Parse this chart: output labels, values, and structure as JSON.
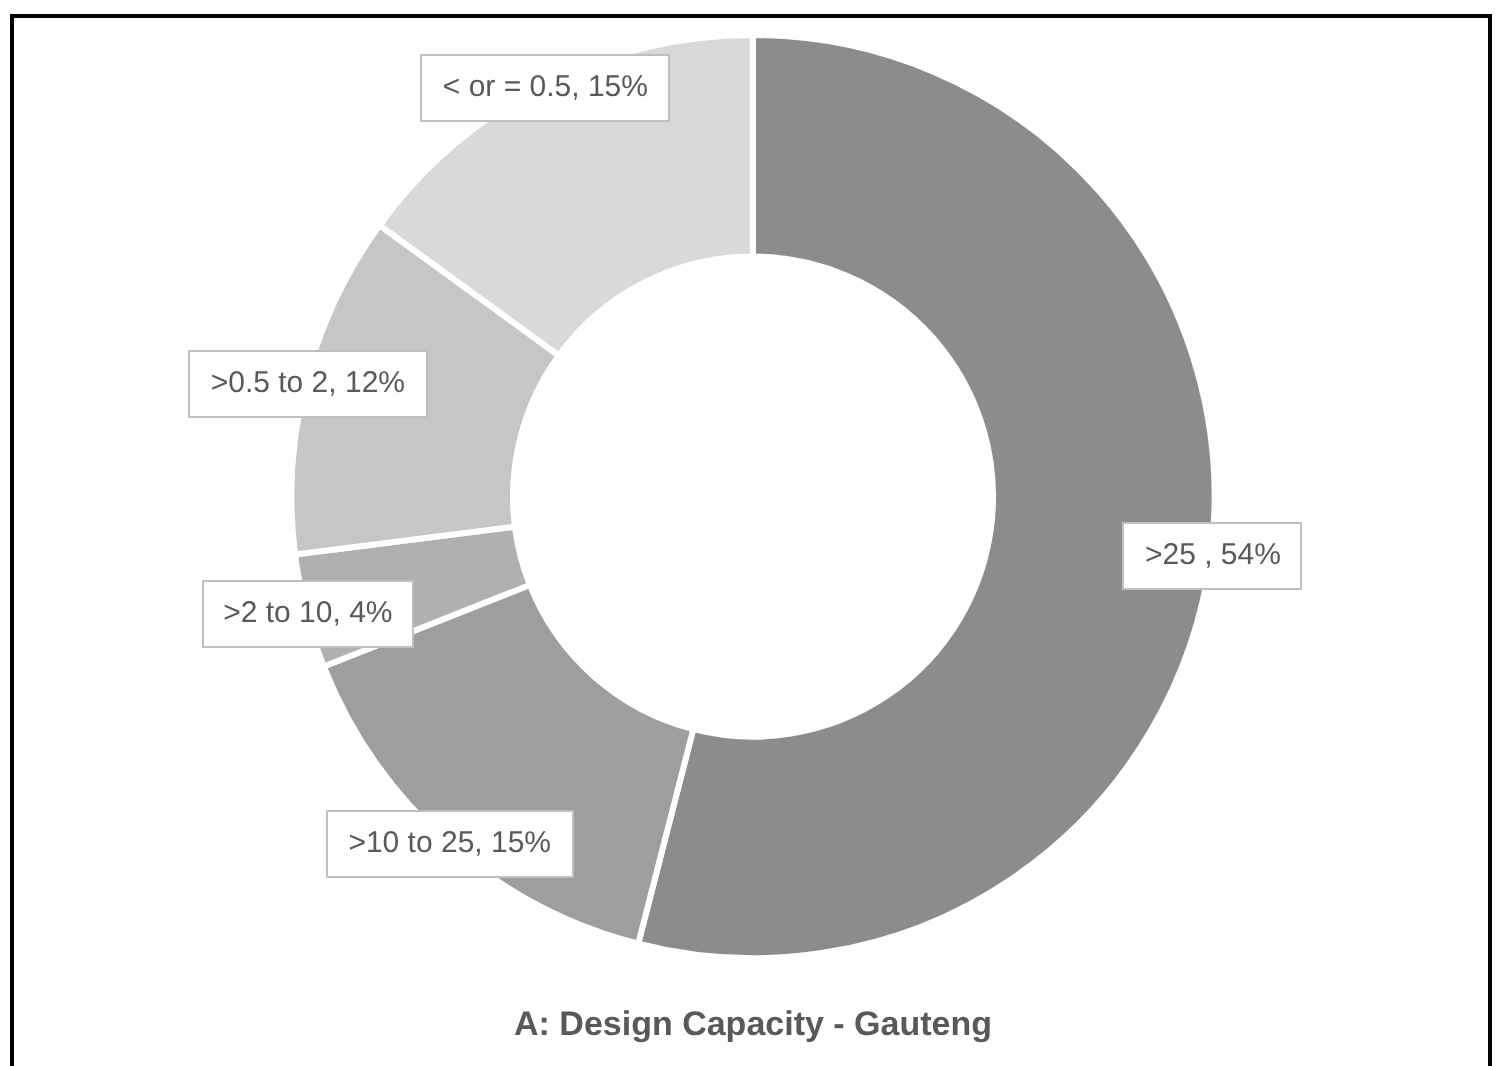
{
  "chart_data": {
    "type": "donut",
    "title": "A: Design Capacity - Gauteng",
    "categories": [
      ">25 ",
      ">10 to 25",
      ">2 to 10",
      ">0.5 to 2",
      "< or = 0.5"
    ],
    "values": [
      54,
      15,
      4,
      12,
      15
    ],
    "value_labels": [
      "54%",
      "15%",
      "4%",
      "12%",
      "15%"
    ],
    "colors": [
      "#8c8c8c",
      "#9e9e9e",
      "#b0b0b0",
      "#c6c6c6",
      "#d9d9d9"
    ],
    "legend": false
  }
}
